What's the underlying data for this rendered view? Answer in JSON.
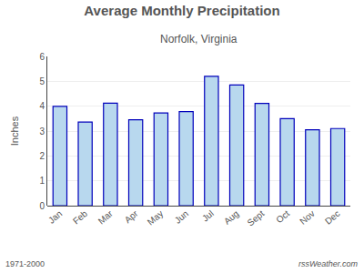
{
  "chart_data": {
    "type": "bar",
    "title": "Average Monthly Precipitation",
    "subtitle": "Norfolk, Virginia",
    "ylabel": "Inches",
    "categories": [
      "Jan",
      "Feb",
      "Mar",
      "Apr",
      "May",
      "Jun",
      "Jul",
      "Aug",
      "Sept",
      "Oct",
      "Nov",
      "Dec"
    ],
    "values": [
      3.99,
      3.36,
      4.12,
      3.45,
      3.73,
      3.78,
      5.2,
      4.85,
      4.11,
      3.5,
      3.05,
      3.1
    ],
    "color": "#b8d8ee",
    "ylim": [
      0.0,
      6.0
    ],
    "yticks": [
      0,
      1,
      2,
      3,
      4,
      5,
      6
    ],
    "grid": true,
    "annotations": [
      "1971-2000",
      "rssWeather.com"
    ]
  }
}
